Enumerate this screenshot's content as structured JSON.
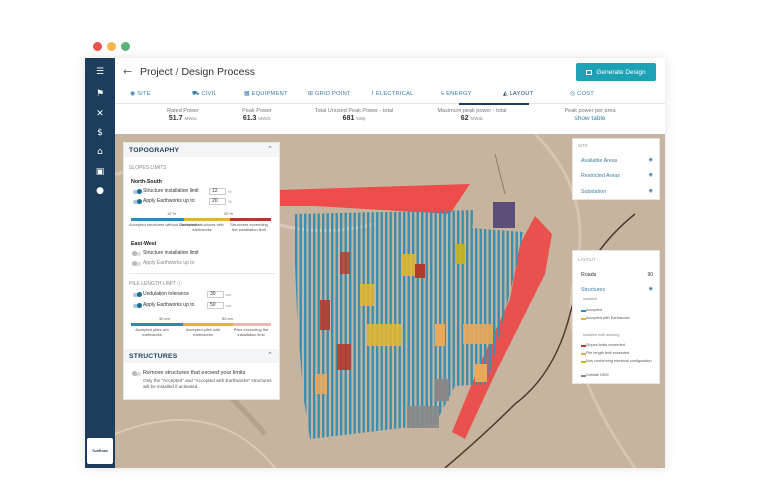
{
  "window": {
    "dots": [
      "#e8524a",
      "#f2b64a",
      "#5bb37a"
    ]
  },
  "header": {
    "back_icon": "arrow-left-icon",
    "project": "Project",
    "separator": "/",
    "page": "Design Process",
    "generate_button": "Generate Design",
    "generate_icon": "image-icon"
  },
  "sidebar": {
    "icons": [
      "menu-icon",
      "flag-icon",
      "tools-icon",
      "dollar-icon",
      "bank-icon",
      "briefcase-icon",
      "users-icon"
    ],
    "logo_text": "SunRoad"
  },
  "tabs": [
    {
      "label": "SITE",
      "icon": "pin-icon"
    },
    {
      "label": "CIVIL",
      "icon": "excavator-icon"
    },
    {
      "label": "EQUIPMENT",
      "icon": "panel-icon"
    },
    {
      "label": "GRID POINT",
      "icon": "grid-icon"
    },
    {
      "label": "ELECTRICAL",
      "icon": "cable-icon"
    },
    {
      "label": "ENERGY",
      "icon": "bolt-icon"
    },
    {
      "label": "LAYOUT",
      "icon": "layout-icon",
      "active": true
    },
    {
      "label": "COST",
      "icon": "coin-icon"
    }
  ],
  "stats": [
    {
      "label": "Rated Power",
      "value": "51.7",
      "unit": "MWac"
    },
    {
      "label": "Peak Power",
      "value": "61.3",
      "unit": "MWdc"
    },
    {
      "label": "Total Unused Peak Power - total",
      "value": "681",
      "unit": "kWp"
    },
    {
      "label": "Maximum peak power - total",
      "value": "62",
      "unit": "MWdc"
    },
    {
      "label": "Peak power per area",
      "link": "show table"
    }
  ],
  "topography": {
    "title": "TOPOGRAPHY",
    "slopes_limits": "SLOPES LIMITS",
    "north_south": "North-South",
    "structure_limit_label": "Structure installation limit",
    "structure_limit_value": "12",
    "earthworks_label": "Apply Earthworks up to:",
    "earthworks_value": "20",
    "percent_unit": "%",
    "bar_marks": [
      "12 %",
      "20 %"
    ],
    "bar_labels": [
      "Accepted structures without Earthworks",
      "Accepted structures with earthworks",
      "Structures exceeding the installation limit"
    ],
    "east_west": "East-West",
    "ew_structure_limit": "Structure installation limit",
    "ew_earthworks": "Apply Earthworks up to",
    "pile_length_limit": "PILE LENGTH LIMIT",
    "info_icon": "info-icon",
    "undulation_label": "Undulation tolerance",
    "undulation_value": "30",
    "pile_earthworks_label": "Apply Earthworks up to",
    "pile_earthworks_value": "50",
    "cm_unit": "cm",
    "pile_marks": [
      "30 cm",
      "50 cm"
    ],
    "pile_labels": [
      "Accepted piles w/o earthworks",
      "Accepted piles with earthworks",
      "Piles exceeding the installation limit"
    ],
    "colors": {
      "accepted": "#2a8db5",
      "earthworks": "#e0b534",
      "exceeding": "#b53a2e"
    }
  },
  "structures": {
    "title": "STRUCTURES",
    "remove_label": "Remove structures that exceed your limits",
    "note": "Only the \"Accepted\" and \"Accepted with Earthworks\" structures will be installed if activated."
  },
  "site_panel": {
    "section": "SITE",
    "items": [
      "Available Areas",
      "Restricted Areas",
      "Substation"
    ],
    "eye_icon": "eye-icon"
  },
  "layout_panel": {
    "section": "LAYOUT",
    "roads_label": "Roads",
    "roads_value": "90",
    "structures_label": "Structures",
    "installed": "Installed",
    "installed_items": [
      {
        "label": "Accepted",
        "color": "#2a8db5"
      },
      {
        "label": "Accepted with Earthworks",
        "color": "#e0b534"
      }
    ],
    "installed_warning": "Installed with warning",
    "warning_items": [
      {
        "label": "Slopes limits exceeded",
        "color": "#b53a2e"
      },
      {
        "label": "Pile length limit exceeded",
        "color": "#e8a85a"
      },
      {
        "label": "Non conforming electrical configuration",
        "color": "#c8b41e"
      },
      {
        "label": "Outside DEM",
        "color": "#888888"
      }
    ]
  },
  "map": {
    "restricted_color": "#ef4040",
    "substation_color": "#5b4f7a"
  }
}
